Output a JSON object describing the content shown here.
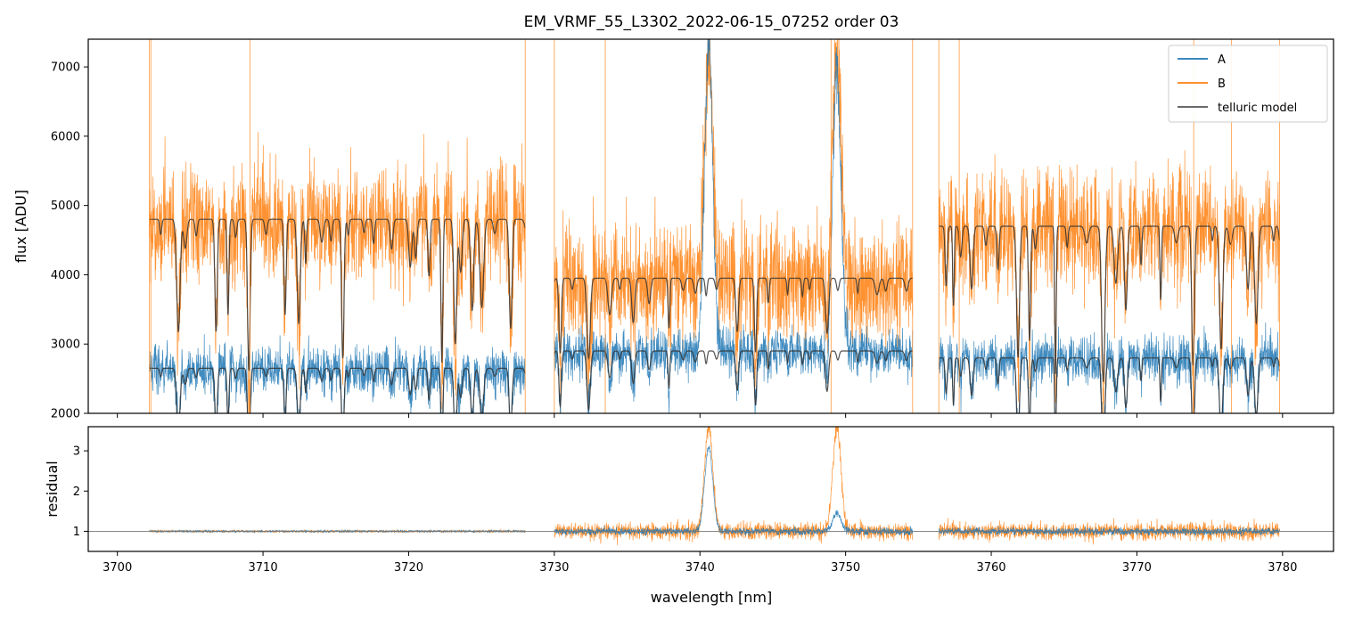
{
  "chart_data": {
    "type": "line",
    "title": "EM_VRMF_55_L3302_2022-06-15_07252  order 03",
    "xlabel": "wavelength [nm]",
    "xlim": [
      3698,
      3783.5
    ],
    "xticks": [
      3700,
      3710,
      3720,
      3730,
      3740,
      3750,
      3760,
      3770,
      3780
    ],
    "legend": {
      "placement": "top-right",
      "entries": [
        "A",
        "B",
        "telluric model"
      ]
    },
    "colors": {
      "A": "#1f77b4",
      "B": "#ff7f0e",
      "telluric": "#555555"
    },
    "segments": [
      [
        3702.2,
        3728.0
      ],
      [
        3730.0,
        3754.6
      ],
      [
        3756.4,
        3779.8
      ]
    ],
    "panels": [
      {
        "name": "flux",
        "ylabel": "flux [ADU]",
        "ylim": [
          2000,
          7400
        ],
        "yticks": [
          2000,
          3000,
          4000,
          5000,
          6000,
          7000
        ],
        "series": [
          {
            "name": "A",
            "level": [
              2650,
              2900,
              2800
            ],
            "noise": 170
          },
          {
            "name": "B",
            "level": [
              4800,
              3950,
              4700
            ],
            "noise": 420
          },
          {
            "name": "telluric model",
            "levels": [
              2650,
              2900,
              2800,
              4800,
              3950,
              4700
            ]
          }
        ],
        "emission_lines": [
          {
            "center": 3740.6,
            "peak_A": 7400,
            "peak_B": 7400
          },
          {
            "center": 3749.4,
            "peak_A": 7000,
            "peak_B": 7400
          }
        ]
      },
      {
        "name": "residual",
        "ylabel": "residual",
        "ylim": [
          0.5,
          3.6
        ],
        "yticks": [
          1,
          2,
          3
        ],
        "reference_line": 1,
        "series": [
          {
            "name": "A",
            "peaks": [
              {
                "center": 3740.6,
                "height": 3.1
              },
              {
                "center": 3749.4,
                "height": 1.45
              }
            ]
          },
          {
            "name": "B",
            "peaks": [
              {
                "center": 3740.6,
                "height": 3.6
              },
              {
                "center": 3749.4,
                "height": 3.6
              }
            ]
          }
        ]
      }
    ]
  }
}
